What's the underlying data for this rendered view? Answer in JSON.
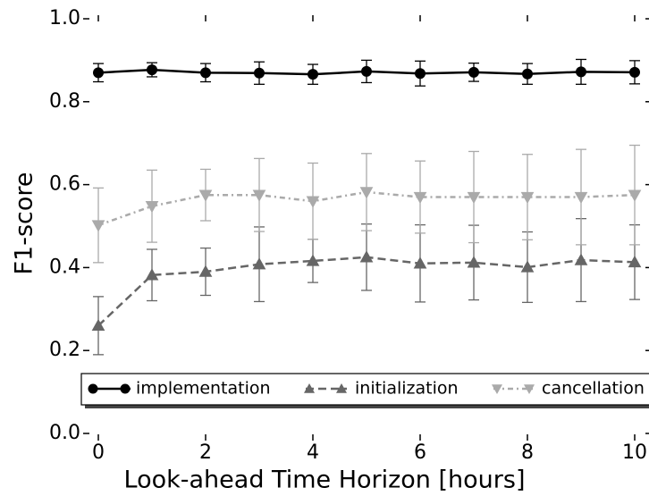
{
  "chart_data": {
    "type": "errorbar-line",
    "xlabel": "Look-ahead Time Horizon [hours]",
    "ylabel": "F1-score",
    "x": [
      0,
      1,
      2,
      3,
      4,
      5,
      6,
      7,
      8,
      9,
      10
    ],
    "series": [
      {
        "name": "implementation",
        "color": "#000000",
        "linestyle": "solid",
        "marker": "circle",
        "values": [
          0.87,
          0.877,
          0.87,
          0.869,
          0.866,
          0.873,
          0.868,
          0.871,
          0.867,
          0.872,
          0.871
        ],
        "errors": [
          0.022,
          0.017,
          0.022,
          0.027,
          0.024,
          0.027,
          0.03,
          0.022,
          0.025,
          0.03,
          0.028
        ]
      },
      {
        "name": "initialization",
        "color": "#666666",
        "linestyle": "dashed",
        "marker": "triangle-up",
        "values": [
          0.26,
          0.382,
          0.39,
          0.408,
          0.416,
          0.425,
          0.41,
          0.412,
          0.401,
          0.418,
          0.413
        ],
        "errors": [
          0.07,
          0.062,
          0.057,
          0.09,
          0.052,
          0.08,
          0.093,
          0.09,
          0.085,
          0.1,
          0.09
        ]
      },
      {
        "name": "cancellation",
        "color": "#aaaaaa",
        "linestyle": "dashdot",
        "marker": "triangle-down",
        "values": [
          0.502,
          0.548,
          0.575,
          0.575,
          0.56,
          0.582,
          0.57,
          0.57,
          0.57,
          0.57,
          0.575
        ],
        "errors": [
          0.09,
          0.087,
          0.062,
          0.088,
          0.092,
          0.093,
          0.087,
          0.11,
          0.103,
          0.115,
          0.12
        ]
      }
    ],
    "xlim": [
      0,
      10
    ],
    "xticks": [
      0,
      2,
      4,
      6,
      8,
      10
    ],
    "ylim": [
      0,
      1
    ],
    "yticks": [
      {
        "value": 0,
        "label": "0.0"
      },
      {
        "value": 0.2,
        "label": "0.2"
      },
      {
        "value": 0.4,
        "label": "0.4"
      },
      {
        "value": 0.6,
        "label": "0.6"
      },
      {
        "value": 0.8,
        "label": "0.8"
      },
      {
        "value": 1,
        "label": "1.0"
      }
    ],
    "legend": "lower center",
    "grid": false
  }
}
